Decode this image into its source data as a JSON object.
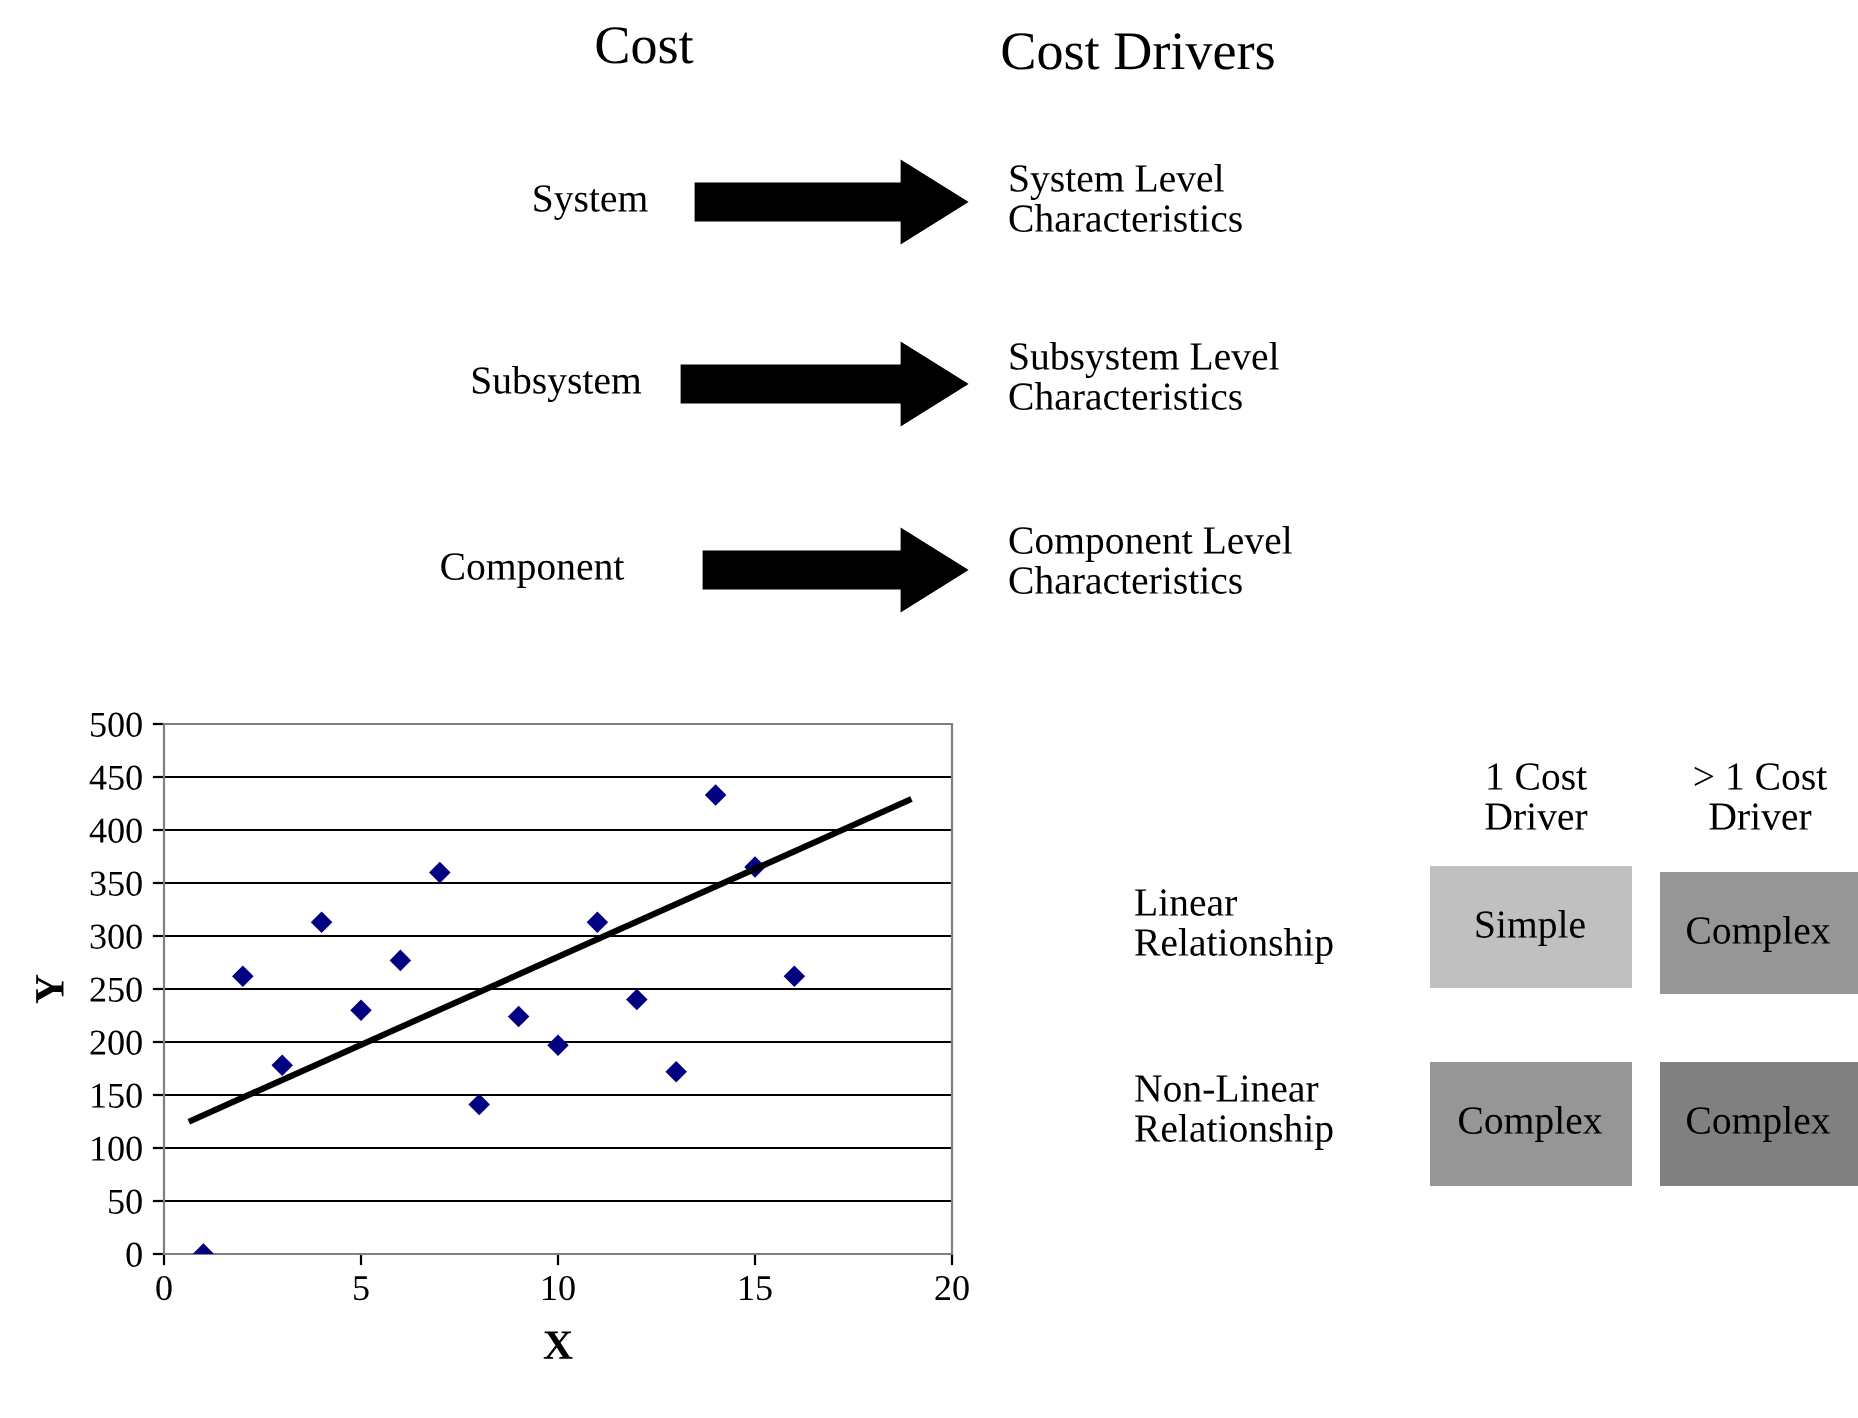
{
  "chart_data": [
    {
      "type": "other",
      "annotations": [
        "Cost",
        "Cost Drivers",
        "System",
        "System Level\nCharacteristics",
        "Subsystem",
        "Subsystem Level\nCharacteristics",
        "Component",
        "Component Level\nCharacteristics",
        "1 Cost\nDriver",
        "> 1 Cost\nDriver",
        "Linear\nRelationship",
        "Non-Linear\nRelationship",
        "Simple",
        "Complex",
        "Complex",
        "Complex"
      ]
    },
    {
      "type": "scatter",
      "xlabel": "X",
      "ylabel": "Y",
      "xlim": [
        0,
        20
      ],
      "ylim": [
        0,
        500
      ],
      "xticks": [
        0,
        5,
        10,
        15,
        20
      ],
      "yticks": [
        0,
        50,
        100,
        150,
        200,
        250,
        300,
        350,
        400,
        450,
        500
      ],
      "grid": "y",
      "legend": false,
      "series": [
        {
          "type": "scatter",
          "color": "#000080",
          "marker": "diamond",
          "x": [
            1,
            2,
            3,
            4,
            5,
            6,
            7,
            8,
            9,
            10,
            11,
            12,
            13,
            14,
            15,
            16
          ],
          "values": [
            0,
            262,
            178,
            313,
            230,
            277,
            360,
            141,
            224,
            197,
            313,
            240,
            172,
            433,
            365,
            262
          ]
        },
        {
          "type": "line",
          "color": "#000000",
          "marker": "none",
          "line_style": "solid",
          "x": [
            0.7,
            18.9
          ],
          "values": [
            126,
            428
          ]
        }
      ]
    }
  ]
}
